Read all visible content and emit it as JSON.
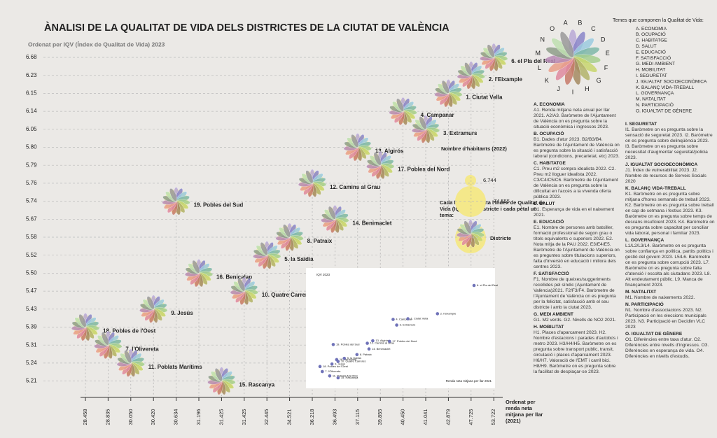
{
  "title": "ÀNALISI DE LA QUALITAT DE VIDA DELS DISTRICTES DE LA CIUTAT DE VALÈNCIA",
  "subtitle": "Ordenat per IQV (Índex de Qualitat de Vida) 2023",
  "x_axis_label": "Ordenat per renda neta mitjana per llar (2021)",
  "y_ticks": [
    "6.68",
    "6.23",
    "6.15",
    "6.14",
    "6.05",
    "5.80",
    "5.79",
    "5.76",
    "5.74",
    "5.67",
    "5.58",
    "5.52",
    "5.50",
    "5.47",
    "5.43",
    "5.39",
    "5.31",
    "5.24",
    "5.21"
  ],
  "districts": [
    {
      "label": "18. Pobles de l'Oest",
      "income": "28.458",
      "iqv": "5.39"
    },
    {
      "label": "7. l'Olivereta",
      "income": "28.835",
      "iqv": "5.31"
    },
    {
      "label": "11. Poblats Marítims",
      "income": "30.050",
      "iqv": "5.24"
    },
    {
      "label": "9. Jesús",
      "income": "30.420",
      "iqv": "5.43"
    },
    {
      "label": "19. Pobles del Sud",
      "income": "30.634",
      "iqv": "5.74"
    },
    {
      "label": "16. Benicalap",
      "income": "31.196",
      "iqv": "5.50"
    },
    {
      "label": "15. Rascanya",
      "income": "31.425",
      "iqv": "5.21"
    },
    {
      "label": "10. Quatre Carreres",
      "income": "31.425",
      "iqv": "5.47"
    },
    {
      "label": "5. la Saïdia",
      "income": "32.445",
      "iqv": "5.52"
    },
    {
      "label": "8. Patraix",
      "income": "34.521",
      "iqv": "5.58"
    },
    {
      "label": "12. Camins al Grau",
      "income": "36.218",
      "iqv": "5.76"
    },
    {
      "label": "14. Benimaclet",
      "income": "36.493",
      "iqv": "5.67"
    },
    {
      "label": "13. Algirós",
      "income": "37.115",
      "iqv": "5.80"
    },
    {
      "label": "17. Pobles del Nord",
      "income": "39.855",
      "iqv": "5.79"
    },
    {
      "label": "4. Campanar",
      "income": "40.450",
      "iqv": "6.14"
    },
    {
      "label": "3. Extramurs",
      "income": "41.041",
      "iqv": "6.05"
    },
    {
      "label": "1. Ciutat Vella",
      "income": "42.879",
      "iqv": "6.15"
    },
    {
      "label": "2. l'Eixample",
      "income": "47.725",
      "iqv": "6.23"
    },
    {
      "label": "6. el Pla del Real",
      "income": "53.722",
      "iqv": "6.68"
    }
  ],
  "inset": {
    "y_label": "IQV 2023",
    "x_label": "Renda neta mitjana per llar 2021"
  },
  "population_legend": {
    "title": "Nombre d'habitants (2022)",
    "small": "6.744",
    "large": "74.555"
  },
  "flower_note": "Cada flor representa l'Índex de Qualitat de Vida (IQV) d'un districte i cada pètal un tema:",
  "flower_label": "Districte",
  "themes_header": "Temes que componen la Qualitat de Vida:",
  "themes": [
    {
      "letter": "A",
      "name": "A. ECONOMIA",
      "color": "#b9a9d6"
    },
    {
      "letter": "B",
      "name": "B. OCUPACIÓ",
      "color": "#8a86c9"
    },
    {
      "letter": "C",
      "name": "C. HABITATGE",
      "color": "#9ccbe0"
    },
    {
      "letter": "D",
      "name": "D. SALUT",
      "color": "#7fb8a8"
    },
    {
      "letter": "E",
      "name": "E. EDUCACIÓ",
      "color": "#a6cf8f"
    },
    {
      "letter": "F",
      "name": "F. SATISFACCIÓ",
      "color": "#c8d66e"
    },
    {
      "letter": "G",
      "name": "G. MEDI AMBIENT",
      "color": "#b3b36a"
    },
    {
      "letter": "H",
      "name": "H. MOBILITAT",
      "color": "#a58a62"
    },
    {
      "letter": "I",
      "name": "I. SEGURETAT",
      "color": "#c77b6a"
    },
    {
      "letter": "J",
      "name": "J. IGUALTAT SOCIOECONÒMICA",
      "color": "#e08aa0"
    },
    {
      "letter": "K",
      "name": "K. BALANÇ VIDA-TREBALL",
      "color": "#e9a08a"
    },
    {
      "letter": "L",
      "name": "L. GOVERNANÇA",
      "color": "#b88bb5"
    },
    {
      "letter": "M",
      "name": "M. NATALITAT",
      "color": "#8f9e8a"
    },
    {
      "letter": "N",
      "name": "N. PARTICIPACIÓ",
      "color": "#bfe0b0"
    },
    {
      "letter": "O",
      "name": "O. IGUALTAT DE GÈNERE",
      "color": "#9a9a9a"
    }
  ],
  "descriptions": [
    {
      "heading": "A. ECONOMIA",
      "text": "A1. Renda mitjana neta anual per llar 2021. A2/A3. Baròmetre de l'Ajuntament de València on es pregunta sobre la situació econòmica i ingressos 2023."
    },
    {
      "heading": "B. OCUPACIÓ",
      "text": "B1. Dades d'atur 2023. B2/B3/B4. Baròmetre de l'Ajuntament de València on es pregunta sobre la situació i satisfacció laboral (condicions, precarietat, etc) 2023."
    },
    {
      "heading": "C. HABITATGE",
      "text": "C1. Preu m2 compra idealista 2022. C2. Preu m2 lloguer idealista 2022. C3/C4/C5/C6. Baròmetre de l'Ajuntament de València on es pregunta sobre la dificultat en l'accés a la vivenda oferta pública 2023."
    },
    {
      "heading": "D. SALUT",
      "text": "D1. Esperança de vida en el naixement 2021."
    },
    {
      "heading": "E. EDUCACIÓ",
      "text": "E1. Nombre de persones amb batxiller, formació professional de segon grau o títols equivalents o superiors 2022. E2. Nota mitja de la PAU 2022. E3/E4/E5. Baròmetre de l'Ajuntament de València on es preguntes sobre titulacions superiors, falta d'inversió en educació i millora dels centres 2023."
    },
    {
      "heading": "F. SATISFACCIÓ",
      "text": "F1. Nombre de queixes/suggeriments recollides pel síndic (Ajuntament de València)2021. F2/F3/F4. Baròmetre de l'Ajuntament de València on es pregunta per la felicitat, satisfacció amb el seu districte i amb la ciutat 2023."
    },
    {
      "heading": "G. MEDI AMBIENT",
      "text": "G1. M2 verds. G2. Nivells de NO2 2021."
    },
    {
      "heading": "H. MOBILITAT",
      "text": "H1. Places d'aparcament 2023. H2. Nombre d'estacions i parades d'autobús i metro 2023. H3/H4/H5. Baròmetre on es pregunta sobre transport public, transit, circulació i places d'aparcament 2023. H6/H7. Valoració de l'EMT i carril bici. H8/H9. Baròmetre on es pregunta sobre la facilitat de desplaçar-se 2023."
    },
    {
      "heading": "I. SEGURETAT",
      "text": "I1. Baròmetre on es pregunta sobre la sensació de seguretat 2023. I2. Baròmetre on es pregunta sobre delinqüència 2023. I3. Baròmetre on es pregunta sobre necessitat d'augmentar seguretat/policia 2023."
    },
    {
      "heading": "J. IGUALTAT SOCIOECONÒMICA",
      "text": "J1. Índex de vulnerabilitat 2023. J2. Nombre de recursos de Serveis Socials 2020"
    },
    {
      "heading": "K. BALANÇ VIDA-TREBALL",
      "text": "K1. Baròmetre on es pregunta sobre mitjana d'hores semanals de treball 2023. K2. Baròmetre on es pregunta sobre treball en cap de setmana i festius 2023. K3. Baròmetre on es pregunta sobre temps de descans insuficient 2023. K4. Baròmetre on es pregunta sobre capacitat per conciliar vida laboral, personal i familiar 2023."
    },
    {
      "heading": "L. GOVERNANÇA",
      "text": "L1/L2/L3/L4. Baròmetre on es pregunta sobre confiança en política, partits polítics i gestió del govern 2023. L5/L6. Baròmetre on es pregunta sobre corrupció 2023. L7. Baròmetre on es pregunta sobre falta d'atenció / escolta als ciutadans 2023. L8. Alt endeutament públic. L9. Manca de finançament 2023."
    },
    {
      "heading": "M. NATALITAT",
      "text": "M1. Nombre de naixements 2022."
    },
    {
      "heading": "N. PARTICIPACIÓ",
      "text": "N1. Nombre d'associacions 2023. N2. Participació en les eleccions municipals 2023. N3. Participació en Decidim VLC 2023"
    },
    {
      "heading": "O. IGUALTAT DE GÈNERE",
      "text": "O1. Diferències entre taxa d'atur. O2. Diferències entre nivells d'ingressos. O3. Diferències en esperança de vida. O4. Diferències en nivells d'estudis."
    }
  ]
}
